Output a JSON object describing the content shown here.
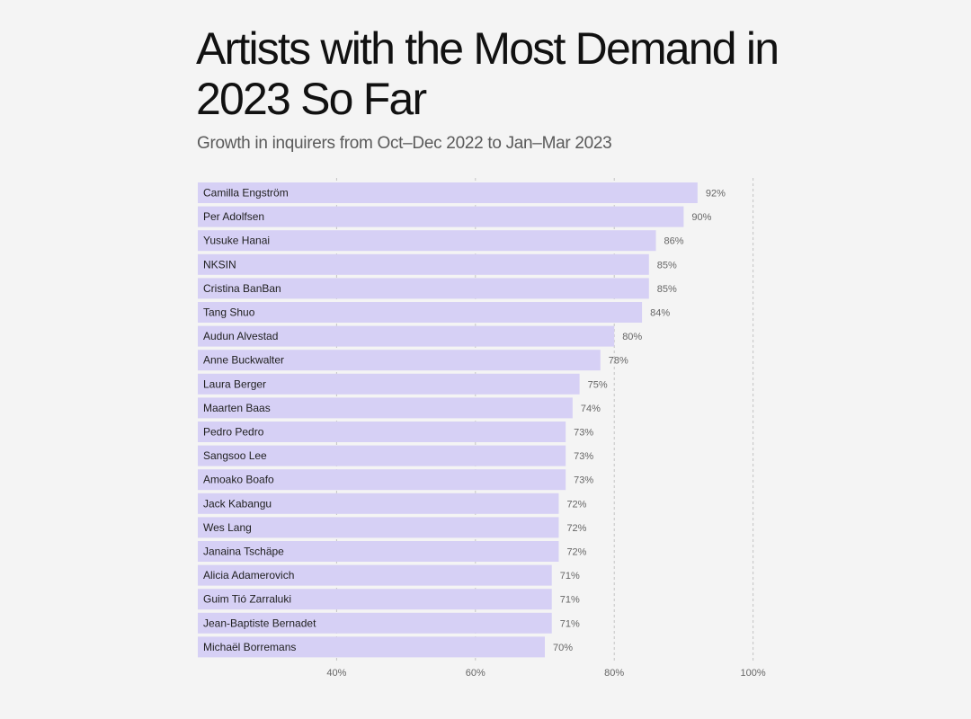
{
  "chart_data": {
    "type": "bar",
    "orientation": "horizontal",
    "title": "Artists with the Most Demand in 2023 So Far",
    "subtitle": "Growth in inquirers from Oct–Dec 2022 to Jan–Mar 2023",
    "categories": [
      "Camilla Engström",
      "Per Adolfsen",
      "Yusuke Hanai",
      "NKSIN",
      "Cristina BanBan",
      "Tang Shuo",
      "Audun Alvestad",
      "Anne Buckwalter",
      "Laura Berger",
      "Maarten Baas",
      "Pedro Pedro",
      "Sangsoo Lee",
      "Amoako Boafo",
      "Jack Kabangu",
      "Wes Lang",
      "Janaina Tschäpe",
      "Alicia Adamerovich",
      "Guim Tió Zarraluki",
      "Jean-Baptiste Bernadet",
      "Michaël Borremans"
    ],
    "values": [
      92,
      90,
      86,
      85,
      85,
      84,
      80,
      78,
      75,
      74,
      73,
      73,
      73,
      72,
      72,
      72,
      71,
      71,
      71,
      70
    ],
    "value_labels": [
      "92%",
      "90%",
      "86%",
      "85%",
      "85%",
      "84%",
      "80%",
      "78%",
      "75%",
      "74%",
      "73%",
      "73%",
      "73%",
      "72%",
      "72%",
      "72%",
      "71%",
      "71%",
      "71%",
      "70%"
    ],
    "xlim": [
      20,
      100
    ],
    "xticks": [
      40,
      60,
      80,
      100
    ],
    "xtick_labels": [
      "40%",
      "60%",
      "80%",
      "100%"
    ],
    "grid": "vertical dashed",
    "bar_color": "#d6d0f5",
    "xlabel": "",
    "ylabel": ""
  }
}
